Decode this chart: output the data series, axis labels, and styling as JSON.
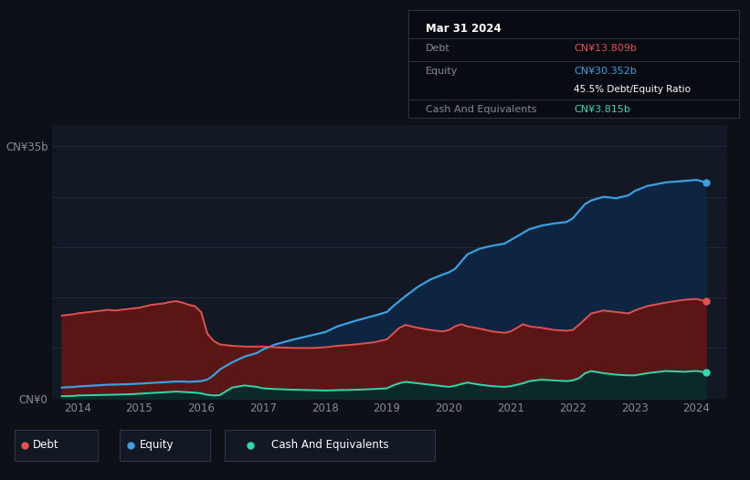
{
  "bg_color": "#0d1117",
  "plot_bg_color": "#131825",
  "ylabel_text": "CN¥35b",
  "ylabel0_text": "CN¥0",
  "ylim": [
    0,
    38
  ],
  "xlim_start": 2013.6,
  "xlim_end": 2024.5,
  "xticks": [
    2014,
    2015,
    2016,
    2017,
    2018,
    2019,
    2020,
    2021,
    2022,
    2023,
    2024
  ],
  "debt_color": "#e05252",
  "equity_color": "#3aa0e0",
  "cash_color": "#30d8b0",
  "debt_fill_color": "#5a1515",
  "equity_fill_color": "#0d2540",
  "cash_fill_color": "#0a2a28",
  "grid_color": "#252d3d",
  "legend_bg": "#131825",
  "tooltip_bg": "#080c12",
  "tooltip": {
    "date": "Mar 31 2024",
    "debt_label": "Debt",
    "debt_value": "CN¥13.809b",
    "equity_label": "Equity",
    "equity_value": "CN¥30.352b",
    "ratio_label": "45.5% Debt/Equity Ratio",
    "cash_label": "Cash And Equivalents",
    "cash_value": "CN¥3.815b"
  },
  "years": [
    2013.75,
    2013.85,
    2013.95,
    2014.0,
    2014.1,
    2014.2,
    2014.3,
    2014.4,
    2014.5,
    2014.6,
    2014.7,
    2014.8,
    2014.9,
    2015.0,
    2015.1,
    2015.2,
    2015.3,
    2015.4,
    2015.5,
    2015.6,
    2015.7,
    2015.8,
    2015.9,
    2016.0,
    2016.1,
    2016.2,
    2016.3,
    2016.5,
    2016.7,
    2016.9,
    2017.0,
    2017.2,
    2017.5,
    2017.8,
    2018.0,
    2018.2,
    2018.5,
    2018.8,
    2019.0,
    2019.1,
    2019.2,
    2019.3,
    2019.5,
    2019.7,
    2019.9,
    2020.0,
    2020.1,
    2020.2,
    2020.3,
    2020.5,
    2020.7,
    2020.9,
    2021.0,
    2021.1,
    2021.2,
    2021.3,
    2021.5,
    2021.7,
    2021.9,
    2022.0,
    2022.1,
    2022.2,
    2022.3,
    2022.5,
    2022.7,
    2022.9,
    2023.0,
    2023.2,
    2023.5,
    2023.8,
    2024.0,
    2024.15
  ],
  "debt": [
    11.5,
    11.6,
    11.7,
    11.8,
    11.9,
    12.0,
    12.1,
    12.2,
    12.3,
    12.2,
    12.3,
    12.4,
    12.5,
    12.6,
    12.8,
    13.0,
    13.1,
    13.2,
    13.4,
    13.5,
    13.3,
    13.0,
    12.8,
    12.0,
    9.0,
    8.0,
    7.5,
    7.3,
    7.2,
    7.2,
    7.2,
    7.1,
    7.0,
    7.0,
    7.1,
    7.3,
    7.5,
    7.8,
    8.2,
    9.0,
    9.8,
    10.2,
    9.8,
    9.5,
    9.3,
    9.5,
    10.0,
    10.3,
    10.0,
    9.7,
    9.3,
    9.1,
    9.3,
    9.8,
    10.3,
    10.0,
    9.8,
    9.5,
    9.4,
    9.5,
    10.2,
    11.0,
    11.8,
    12.2,
    12.0,
    11.8,
    12.2,
    12.8,
    13.3,
    13.7,
    13.809,
    13.5
  ],
  "equity": [
    1.5,
    1.55,
    1.6,
    1.65,
    1.7,
    1.75,
    1.8,
    1.85,
    1.9,
    1.92,
    1.95,
    1.97,
    2.0,
    2.05,
    2.1,
    2.15,
    2.2,
    2.25,
    2.3,
    2.35,
    2.35,
    2.3,
    2.35,
    2.4,
    2.6,
    3.2,
    4.0,
    5.0,
    5.8,
    6.3,
    6.8,
    7.5,
    8.2,
    8.8,
    9.2,
    10.0,
    10.8,
    11.5,
    12.0,
    12.8,
    13.5,
    14.2,
    15.5,
    16.5,
    17.2,
    17.5,
    18.0,
    19.0,
    20.0,
    20.8,
    21.2,
    21.5,
    22.0,
    22.5,
    23.0,
    23.5,
    24.0,
    24.3,
    24.5,
    25.0,
    26.0,
    27.0,
    27.5,
    28.0,
    27.8,
    28.2,
    28.8,
    29.5,
    30.0,
    30.2,
    30.352,
    30.0
  ],
  "cash": [
    0.3,
    0.32,
    0.35,
    0.4,
    0.42,
    0.44,
    0.46,
    0.48,
    0.5,
    0.52,
    0.54,
    0.56,
    0.6,
    0.65,
    0.7,
    0.75,
    0.8,
    0.85,
    0.9,
    0.95,
    0.9,
    0.85,
    0.8,
    0.7,
    0.5,
    0.4,
    0.45,
    1.5,
    1.8,
    1.6,
    1.4,
    1.3,
    1.2,
    1.15,
    1.1,
    1.15,
    1.2,
    1.3,
    1.4,
    1.8,
    2.1,
    2.3,
    2.1,
    1.9,
    1.7,
    1.6,
    1.75,
    2.0,
    2.2,
    1.9,
    1.7,
    1.6,
    1.7,
    1.9,
    2.1,
    2.4,
    2.6,
    2.5,
    2.4,
    2.5,
    2.8,
    3.5,
    3.8,
    3.5,
    3.3,
    3.2,
    3.2,
    3.5,
    3.8,
    3.7,
    3.815,
    3.6
  ]
}
